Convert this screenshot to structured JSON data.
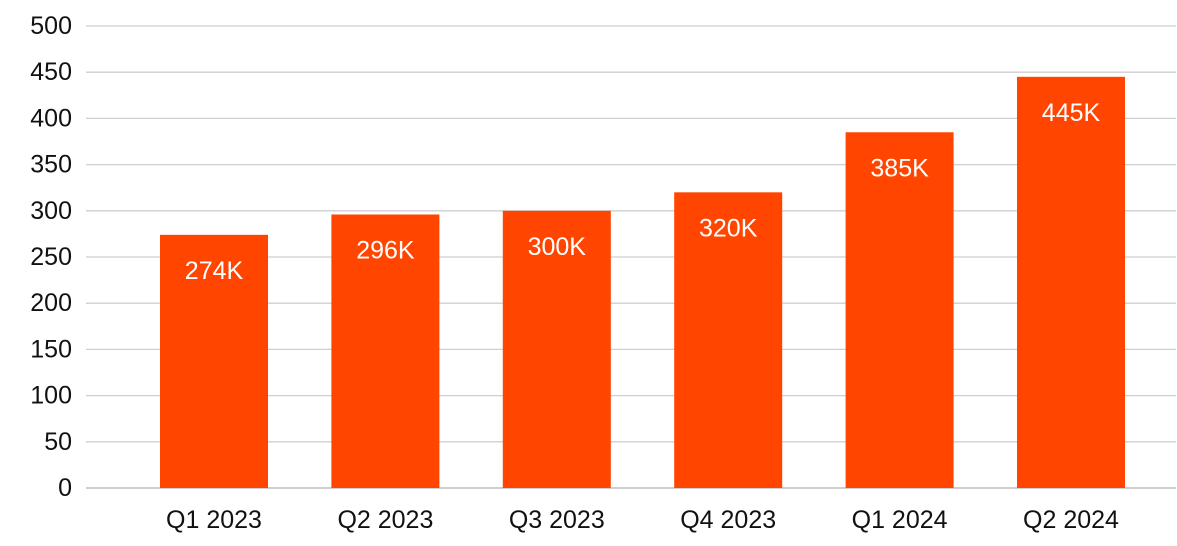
{
  "chart_data": {
    "type": "bar",
    "categories": [
      "Q1 2023",
      "Q2 2023",
      "Q3 2023",
      "Q4 2023",
      "Q1 2024",
      "Q2 2024"
    ],
    "values": [
      274,
      296,
      300,
      320,
      385,
      445
    ],
    "data_labels": [
      "274K",
      "296K",
      "300K",
      "320K",
      "385K",
      "445K"
    ],
    "title": "",
    "xlabel": "",
    "ylabel": "",
    "ylim": [
      0,
      500
    ],
    "yticks": [
      0,
      50,
      100,
      150,
      200,
      250,
      300,
      350,
      400,
      450,
      500
    ],
    "ytick_labels": [
      "0",
      "50",
      "100",
      "150",
      "200",
      "250",
      "300",
      "350",
      "400",
      "450",
      "500"
    ],
    "grid": true,
    "legend": "none",
    "bar_color": "#FF4500"
  }
}
